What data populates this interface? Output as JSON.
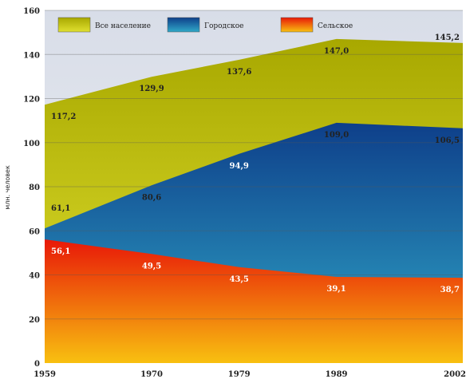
{
  "chart_data": {
    "type": "area",
    "x": [
      1959,
      1970,
      1979,
      1989,
      2002
    ],
    "series": [
      {
        "name": "Все население",
        "values": [
          117.2,
          129.9,
          137.6,
          147.0,
          145.2
        ],
        "labels": [
          "117,2",
          "129,9",
          "137,6",
          "147,0",
          "145,2"
        ],
        "color": "#b8b800"
      },
      {
        "name": "Городское",
        "values": [
          61.1,
          80.6,
          94.9,
          109.0,
          106.5
        ],
        "labels": [
          "61,1",
          "80,6",
          "94,9",
          "109,0",
          "106,5"
        ],
        "color": "#1a5fa8"
      },
      {
        "name": "Сельское",
        "values": [
          56.1,
          49.5,
          43.5,
          39.1,
          38.7
        ],
        "labels": [
          "56,1",
          "49,5",
          "43,5",
          "39,1",
          "38,7"
        ],
        "color": "#e82a10"
      }
    ],
    "ylabel": "млн. человек",
    "ylim": [
      0,
      160
    ],
    "yticks": [
      0,
      20,
      40,
      60,
      80,
      100,
      120,
      140,
      160
    ],
    "grid": true,
    "legend": "top"
  }
}
